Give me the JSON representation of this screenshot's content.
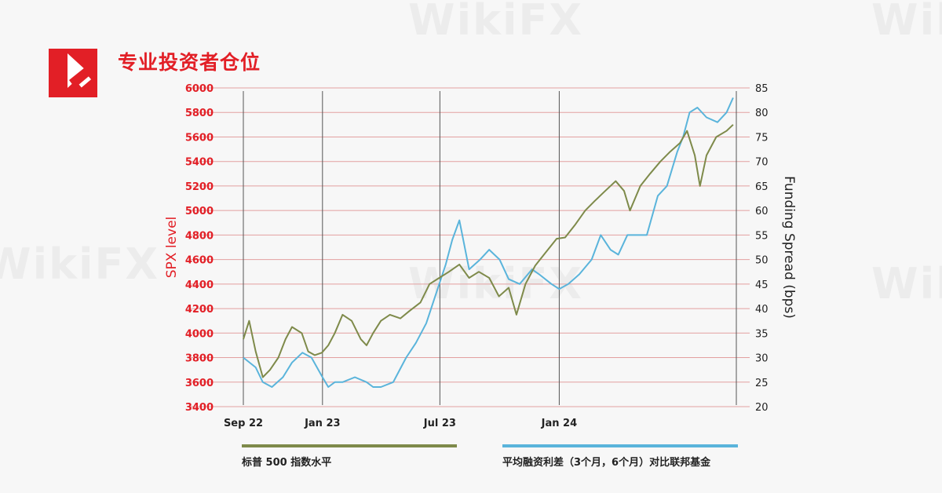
{
  "page_title": "专业投资者仓位",
  "watermark_text": "WikiFX",
  "colors": {
    "brand_red": "#e21f26",
    "spx_line": "#7e8a4a",
    "funding_line": "#5ab4db",
    "gridline": "#e3a0a0",
    "vline": "#555555"
  },
  "chart_data": {
    "type": "line",
    "ylabel_left": "SPX level",
    "ylabel_right": "Funding Spread (bps)",
    "ylim_left": [
      3400,
      6000
    ],
    "ylim_right": [
      20,
      85
    ],
    "yticks_left": [
      3400,
      3600,
      3800,
      4000,
      4200,
      4400,
      4600,
      4800,
      5000,
      5200,
      5400,
      5600,
      5800,
      6000
    ],
    "yticks_right": [
      20,
      25,
      30,
      35,
      40,
      45,
      50,
      55,
      60,
      65,
      70,
      75,
      80,
      85
    ],
    "xlim": [
      "2022-09-01",
      "2024-09-30"
    ],
    "xticks": [
      {
        "label": "Sep 22",
        "date": "2022-09-01"
      },
      {
        "label": "Jan 23",
        "date": "2023-01-01"
      },
      {
        "label": "Jul 23",
        "date": "2023-07-01"
      },
      {
        "label": "Jan 24",
        "date": "2024-01-01"
      }
    ],
    "vertical_lines": [
      "2022-09-01",
      "2023-01-01",
      "2023-07-01",
      "2024-01-01",
      "2024-09-30"
    ],
    "grid": true,
    "series": [
      {
        "name": "标普 500 指数水平",
        "axis": "left",
        "x": [
          "2022-09-01",
          "2022-09-10",
          "2022-09-20",
          "2022-10-01",
          "2022-10-12",
          "2022-10-25",
          "2022-11-05",
          "2022-11-15",
          "2022-11-30",
          "2022-12-10",
          "2022-12-20",
          "2022-12-31",
          "2023-01-10",
          "2023-01-20",
          "2023-02-01",
          "2023-02-15",
          "2023-03-01",
          "2023-03-10",
          "2023-03-20",
          "2023-04-01",
          "2023-04-15",
          "2023-05-01",
          "2023-05-15",
          "2023-06-01",
          "2023-06-15",
          "2023-06-30",
          "2023-07-15",
          "2023-07-31",
          "2023-08-15",
          "2023-08-30",
          "2023-09-15",
          "2023-09-30",
          "2023-10-15",
          "2023-10-27",
          "2023-11-10",
          "2023-11-25",
          "2023-12-10",
          "2023-12-28",
          "2024-01-10",
          "2024-01-25",
          "2024-02-10",
          "2024-02-25",
          "2024-03-10",
          "2024-03-28",
          "2024-04-10",
          "2024-04-19",
          "2024-05-05",
          "2024-05-20",
          "2024-06-05",
          "2024-06-20",
          "2024-07-05",
          "2024-07-16",
          "2024-07-28",
          "2024-08-05",
          "2024-08-15",
          "2024-08-30",
          "2024-09-15",
          "2024-09-25"
        ],
        "values": [
          3950,
          4100,
          3850,
          3640,
          3700,
          3800,
          3950,
          4050,
          4000,
          3850,
          3820,
          3840,
          3900,
          4000,
          4150,
          4100,
          3950,
          3900,
          4000,
          4100,
          4150,
          4120,
          4180,
          4250,
          4400,
          4450,
          4500,
          4560,
          4450,
          4500,
          4450,
          4300,
          4370,
          4150,
          4400,
          4550,
          4650,
          4770,
          4780,
          4880,
          5000,
          5080,
          5150,
          5240,
          5160,
          5000,
          5200,
          5300,
          5400,
          5480,
          5550,
          5650,
          5450,
          5200,
          5450,
          5600,
          5650,
          5700
        ]
      },
      {
        "name": "平均融资利差（3个月，6个月）对比联邦基金",
        "axis": "right",
        "x": [
          "2022-09-01",
          "2022-09-20",
          "2022-10-01",
          "2022-10-15",
          "2022-11-01",
          "2022-11-15",
          "2022-12-01",
          "2022-12-15",
          "2023-01-01",
          "2023-01-10",
          "2023-01-20",
          "2023-02-01",
          "2023-02-20",
          "2023-03-10",
          "2023-03-20",
          "2023-04-01",
          "2023-04-20",
          "2023-05-10",
          "2023-05-25",
          "2023-06-10",
          "2023-06-25",
          "2023-07-10",
          "2023-07-20",
          "2023-07-31",
          "2023-08-15",
          "2023-09-01",
          "2023-09-15",
          "2023-10-01",
          "2023-10-15",
          "2023-11-01",
          "2023-11-20",
          "2023-12-01",
          "2023-12-20",
          "2024-01-01",
          "2024-01-15",
          "2024-02-01",
          "2024-02-20",
          "2024-03-05",
          "2024-03-20",
          "2024-04-01",
          "2024-04-15",
          "2024-05-01",
          "2024-05-15",
          "2024-06-01",
          "2024-06-15",
          "2024-07-01",
          "2024-07-10",
          "2024-07-20",
          "2024-08-01",
          "2024-08-15",
          "2024-09-01",
          "2024-09-15",
          "2024-09-25"
        ],
        "values": [
          30,
          28,
          25,
          24,
          26,
          29,
          31,
          30,
          26,
          24,
          25,
          25,
          26,
          25,
          24,
          24,
          25,
          30,
          33,
          37,
          43,
          49,
          54,
          58,
          48,
          50,
          52,
          50,
          46,
          45,
          48,
          47,
          45,
          44,
          45,
          47,
          50,
          55,
          52,
          51,
          55,
          55,
          55,
          63,
          65,
          72,
          75,
          80,
          81,
          79,
          78,
          80,
          83
        ]
      }
    ]
  }
}
